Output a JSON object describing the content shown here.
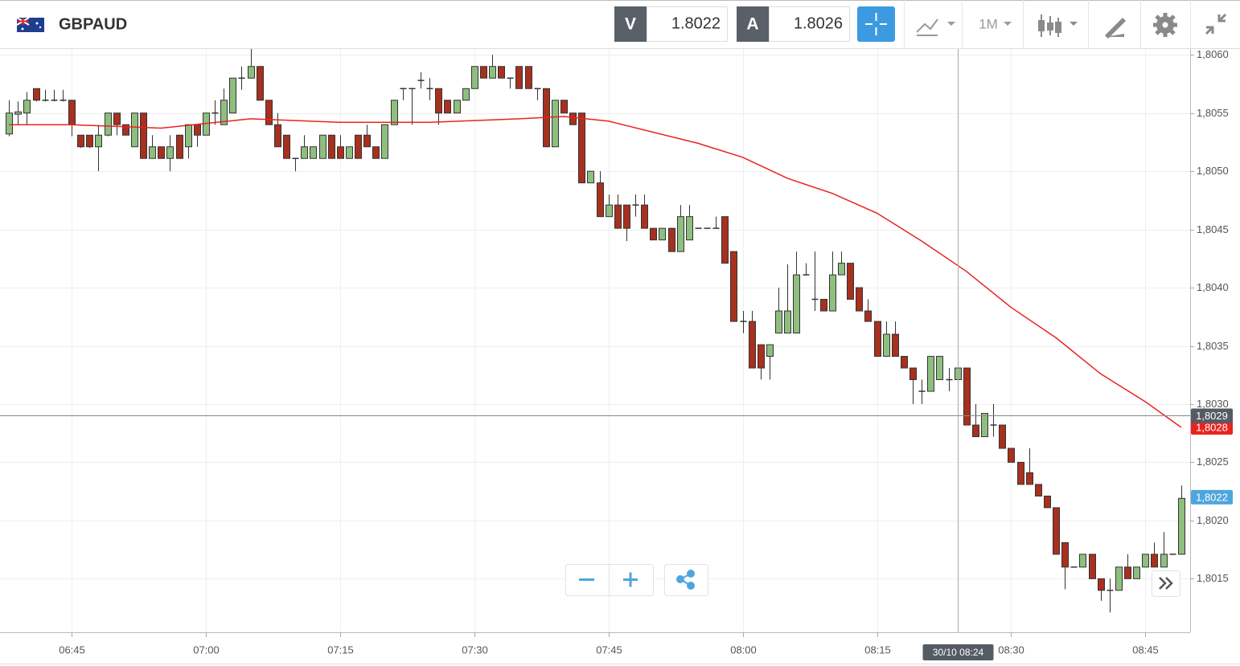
{
  "toolbar": {
    "symbol": "GBPAUD",
    "bid_label": "V",
    "bid": 1.8022,
    "ask_label": "A",
    "ask": 1.8026,
    "timeframe": "1M"
  },
  "chart_data": {
    "type": "candlestick",
    "up_color": "#8fbf7f",
    "down_color": "#a8301e",
    "x": [
      "06:38",
      "06:39",
      "06:40",
      "06:41",
      "06:42",
      "06:43",
      "06:44",
      "06:45",
      "06:46",
      "06:47",
      "06:48",
      "06:49",
      "06:50",
      "06:51",
      "06:52",
      "06:53",
      "06:54",
      "06:55",
      "06:56",
      "06:57",
      "06:58",
      "06:59",
      "07:00",
      "07:01",
      "07:02",
      "07:03",
      "07:04",
      "07:05",
      "07:06",
      "07:07",
      "07:08",
      "07:09",
      "07:10",
      "07:11",
      "07:12",
      "07:13",
      "07:14",
      "07:15",
      "07:16",
      "07:17",
      "07:18",
      "07:19",
      "07:20",
      "07:21",
      "07:22",
      "07:23",
      "07:24",
      "07:25",
      "07:26",
      "07:27",
      "07:28",
      "07:29",
      "07:30",
      "07:31",
      "07:32",
      "07:33",
      "07:34",
      "07:35",
      "07:36",
      "07:37",
      "07:38",
      "07:39",
      "07:40",
      "07:41",
      "07:42",
      "07:43",
      "07:44",
      "07:45",
      "07:46",
      "07:47",
      "07:48",
      "07:49",
      "07:50",
      "07:51",
      "07:52",
      "07:53",
      "07:54",
      "07:55",
      "07:56",
      "07:57",
      "07:58",
      "07:59",
      "08:00",
      "08:01",
      "08:02",
      "08:03",
      "08:04",
      "08:05",
      "08:06",
      "08:07",
      "08:08",
      "08:09",
      "08:10",
      "08:11",
      "08:12",
      "08:13",
      "08:14",
      "08:15",
      "08:16",
      "08:17",
      "08:18",
      "08:19",
      "08:20",
      "08:21",
      "08:22",
      "08:23",
      "08:24",
      "08:25",
      "08:26",
      "08:27",
      "08:28",
      "08:29",
      "08:30",
      "08:31",
      "08:32",
      "08:33",
      "08:34",
      "08:35",
      "08:36",
      "08:37",
      "08:38",
      "08:39",
      "08:40",
      "08:41",
      "08:42",
      "08:43",
      "08:44",
      "08:45",
      "08:46",
      "08:47",
      "08:48",
      "08:49"
    ],
    "open": [
      1.80532,
      1.80549,
      1.8055,
      1.80571,
      1.80561,
      1.80561,
      1.80561,
      1.80561,
      1.80531,
      1.80531,
      1.80521,
      1.80531,
      1.8055,
      1.8054,
      1.80521,
      1.8055,
      1.80511,
      1.80521,
      1.80511,
      1.80531,
      1.80521,
      1.8054,
      1.80531,
      1.8055,
      1.8054,
      1.8055,
      1.8058,
      1.8058,
      1.8059,
      1.80561,
      1.8054,
      1.80531,
      1.80511,
      1.80511,
      1.80511,
      1.80511,
      1.80531,
      1.80521,
      1.80511,
      1.80531,
      1.80531,
      1.80521,
      1.80511,
      1.8054,
      1.80571,
      1.80571,
      1.80578,
      1.80571,
      1.80571,
      1.80561,
      1.8055,
      1.80561,
      1.80571,
      1.8059,
      1.8058,
      1.8059,
      1.8058,
      1.8059,
      1.8059,
      1.80571,
      1.80571,
      1.80521,
      1.80561,
      1.8055,
      1.8055,
      1.8049,
      1.8049,
      1.80461,
      1.80471,
      1.80471,
      1.80471,
      1.80471,
      1.80451,
      1.80441,
      1.80451,
      1.80431,
      1.80441,
      1.80451,
      1.80451,
      1.80451,
      1.80461,
      1.80431,
      1.80371,
      1.80371,
      1.80351,
      1.80341,
      1.80361,
      1.80361,
      1.80361,
      1.80411,
      1.8039,
      1.8039,
      1.8038,
      1.80411,
      1.80421,
      1.804,
      1.8038,
      1.80371,
      1.80341,
      1.8036,
      1.80341,
      1.80331,
      1.80311,
      1.80311,
      1.80321,
      1.80321,
      1.80321,
      1.80331,
      1.80282,
      1.80272,
      1.80282,
      1.80282,
      1.80262,
      1.8025,
      1.80241,
      1.80231,
      1.80221,
      1.80211,
      1.80181,
      1.8016,
      1.8016,
      1.80171,
      1.8015,
      1.8014,
      1.8014,
      1.8016,
      1.8015,
      1.8016,
      1.80171,
      1.8016,
      1.80171,
      1.80171
    ],
    "high": [
      1.80561,
      1.8056,
      1.80568,
      1.80571,
      1.8057,
      1.8057,
      1.8057,
      1.80561,
      1.80531,
      1.80531,
      1.8054,
      1.8055,
      1.8055,
      1.8054,
      1.8055,
      1.8055,
      1.80531,
      1.80521,
      1.80531,
      1.80531,
      1.8054,
      1.8054,
      1.8055,
      1.80561,
      1.80571,
      1.8058,
      1.8059,
      1.80605,
      1.8059,
      1.80561,
      1.8055,
      1.80531,
      1.80511,
      1.80531,
      1.80521,
      1.80531,
      1.80531,
      1.80531,
      1.80521,
      1.80531,
      1.8054,
      1.80521,
      1.8054,
      1.80561,
      1.80571,
      1.80571,
      1.80585,
      1.8058,
      1.80571,
      1.80561,
      1.80561,
      1.80571,
      1.8059,
      1.8059,
      1.806,
      1.8059,
      1.8058,
      1.8059,
      1.8059,
      1.80571,
      1.80571,
      1.80561,
      1.80561,
      1.8055,
      1.8055,
      1.805,
      1.805,
      1.8048,
      1.8048,
      1.80471,
      1.8048,
      1.8048,
      1.80451,
      1.80451,
      1.80451,
      1.80471,
      1.80471,
      1.80451,
      1.80451,
      1.80461,
      1.80461,
      1.80431,
      1.8038,
      1.8038,
      1.80351,
      1.80351,
      1.804,
      1.8042,
      1.80431,
      1.80421,
      1.80431,
      1.8039,
      1.80431,
      1.80431,
      1.80421,
      1.804,
      1.8039,
      1.80371,
      1.80371,
      1.80371,
      1.80341,
      1.80331,
      1.80321,
      1.80341,
      1.80341,
      1.80331,
      1.80341,
      1.80331,
      1.803,
      1.80292,
      1.803,
      1.80282,
      1.80262,
      1.8025,
      1.80262,
      1.80231,
      1.80221,
      1.80211,
      1.80181,
      1.8016,
      1.80171,
      1.80171,
      1.8015,
      1.8015,
      1.8016,
      1.80171,
      1.8016,
      1.80171,
      1.80181,
      1.8019,
      1.80171,
      1.8023
    ],
    "low": [
      1.8053,
      1.8054,
      1.8054,
      1.8056,
      1.8056,
      1.8056,
      1.8056,
      1.8053,
      1.8052,
      1.8052,
      1.805,
      1.8053,
      1.80531,
      1.80531,
      1.80521,
      1.80511,
      1.80511,
      1.80511,
      1.805,
      1.80511,
      1.80511,
      1.80521,
      1.80531,
      1.8054,
      1.8054,
      1.8055,
      1.8057,
      1.8058,
      1.80561,
      1.8054,
      1.80521,
      1.80511,
      1.805,
      1.80511,
      1.80511,
      1.80511,
      1.80511,
      1.80511,
      1.80511,
      1.80511,
      1.80521,
      1.80511,
      1.80511,
      1.8054,
      1.80561,
      1.8054,
      1.80571,
      1.80561,
      1.8054,
      1.8055,
      1.8055,
      1.80561,
      1.80571,
      1.8058,
      1.8058,
      1.8058,
      1.80571,
      1.80571,
      1.80571,
      1.80561,
      1.80521,
      1.80521,
      1.8055,
      1.8054,
      1.8049,
      1.8049,
      1.80461,
      1.80461,
      1.80451,
      1.8044,
      1.80461,
      1.80451,
      1.80441,
      1.80441,
      1.80431,
      1.80431,
      1.80441,
      1.80451,
      1.80451,
      1.80451,
      1.80421,
      1.80371,
      1.80361,
      1.80331,
      1.80321,
      1.80321,
      1.80361,
      1.80361,
      1.80361,
      1.80411,
      1.8038,
      1.8038,
      1.8038,
      1.80411,
      1.8039,
      1.8038,
      1.80371,
      1.80341,
      1.80341,
      1.80341,
      1.80331,
      1.803,
      1.803,
      1.80311,
      1.80321,
      1.80311,
      1.80321,
      1.80282,
      1.80272,
      1.80272,
      1.80272,
      1.80262,
      1.8025,
      1.80231,
      1.80231,
      1.80221,
      1.80211,
      1.80171,
      1.80141,
      1.8016,
      1.8016,
      1.8015,
      1.80131,
      1.80121,
      1.8014,
      1.8015,
      1.8015,
      1.8016,
      1.8016,
      1.8016,
      1.80171,
      1.80171
    ],
    "close": [
      1.8055,
      1.80551,
      1.80561,
      1.80561,
      1.80561,
      1.80561,
      1.80561,
      1.8054,
      1.80521,
      1.80521,
      1.80531,
      1.8055,
      1.8054,
      1.80531,
      1.8055,
      1.80511,
      1.80521,
      1.80511,
      1.80521,
      1.80511,
      1.8054,
      1.80531,
      1.8055,
      1.8055,
      1.80561,
      1.8058,
      1.8058,
      1.8059,
      1.80561,
      1.8054,
      1.80521,
      1.80511,
      1.80511,
      1.80521,
      1.80521,
      1.80531,
      1.80511,
      1.80511,
      1.80521,
      1.80511,
      1.80521,
      1.80511,
      1.8054,
      1.80561,
      1.80571,
      1.80571,
      1.80578,
      1.80571,
      1.8055,
      1.8055,
      1.80561,
      1.80571,
      1.8059,
      1.8058,
      1.8059,
      1.8058,
      1.8058,
      1.80571,
      1.80571,
      1.80571,
      1.80521,
      1.80561,
      1.8055,
      1.8054,
      1.8049,
      1.805,
      1.80461,
      1.80471,
      1.80451,
      1.80451,
      1.80471,
      1.80451,
      1.80441,
      1.80451,
      1.80431,
      1.80461,
      1.80461,
      1.80451,
      1.80451,
      1.80451,
      1.80421,
      1.80371,
      1.80371,
      1.80331,
      1.80331,
      1.80351,
      1.8038,
      1.8038,
      1.80411,
      1.80411,
      1.8039,
      1.8038,
      1.80411,
      1.80421,
      1.8039,
      1.8038,
      1.80371,
      1.80341,
      1.8036,
      1.80341,
      1.80331,
      1.80321,
      1.80311,
      1.80341,
      1.80341,
      1.80321,
      1.80331,
      1.80282,
      1.80272,
      1.80292,
      1.80282,
      1.80262,
      1.8025,
      1.80231,
      1.80231,
      1.80221,
      1.80211,
      1.80171,
      1.8016,
      1.8016,
      1.80171,
      1.8015,
      1.8014,
      1.8014,
      1.8016,
      1.8015,
      1.8016,
      1.80171,
      1.8016,
      1.80171,
      1.80171,
      1.80219
    ],
    "ma": {
      "color": "#e8231f",
      "x": [
        "06:38",
        "06:45",
        "06:55",
        "07:05",
        "07:15",
        "07:25",
        "07:35",
        "07:40",
        "07:45",
        "07:55",
        "08:00",
        "08:05",
        "08:10",
        "08:15",
        "08:20",
        "08:25",
        "08:30",
        "08:35",
        "08:40",
        "08:45",
        "08:49"
      ],
      "values": [
        1.8054,
        1.8054,
        1.80537,
        1.80545,
        1.80542,
        1.80542,
        1.80545,
        1.80547,
        1.80543,
        1.80524,
        1.80512,
        1.80494,
        1.80481,
        1.80464,
        1.8044,
        1.80414,
        1.80383,
        1.80357,
        1.80326,
        1.80302,
        1.8028
      ],
      "last_value": 1.8028,
      "last_label": "1,8028"
    },
    "last_price": {
      "value": 1.8022,
      "label": "1,8022",
      "color": "#4ea6dc"
    },
    "crosshair": {
      "value": 1.8029,
      "value_label": "1,8029",
      "x_label": "30/10 08:24"
    },
    "xlim": [
      "06:37",
      "08:50"
    ],
    "xticks": [
      "06:45",
      "07:00",
      "07:15",
      "07:30",
      "07:45",
      "08:00",
      "08:15",
      "08:30",
      "08:45"
    ],
    "ylim": [
      1.80104,
      1.80605
    ],
    "yticks": [
      {
        "value": 1.8015,
        "label": "1,8015"
      },
      {
        "value": 1.802,
        "label": "1,8020"
      },
      {
        "value": 1.8025,
        "label": "1,8025"
      },
      {
        "value": 1.803,
        "label": "1,8030"
      },
      {
        "value": 1.8035,
        "label": "1,8035"
      },
      {
        "value": 1.804,
        "label": "1,8040"
      },
      {
        "value": 1.8045,
        "label": "1,8045"
      },
      {
        "value": 1.805,
        "label": "1,8050"
      },
      {
        "value": 1.8055,
        "label": "1,8055"
      },
      {
        "value": 1.806,
        "label": "1,8060"
      }
    ],
    "grid": true
  }
}
